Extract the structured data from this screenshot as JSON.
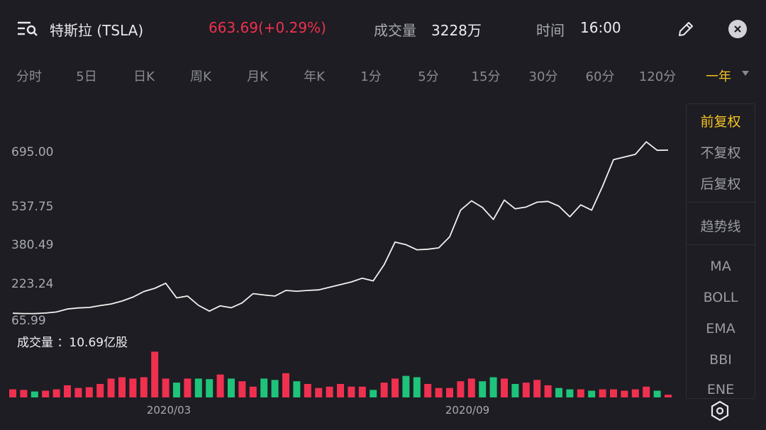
{
  "header": {
    "title": "特斯拉 (TSLA)",
    "price": "663.69(+0.29%)",
    "volume_label": "成交量",
    "volume_value": "3228万",
    "time_label": "时间",
    "time_value": "16:00"
  },
  "tabs": [
    "分时",
    "5日",
    "日K",
    "周K",
    "月K",
    "年K",
    "1分",
    "5分",
    "15分",
    "30分",
    "60分",
    "120分",
    "一年"
  ],
  "active_tab": "一年",
  "side_panel": {
    "adjust_options": [
      "前复权",
      "不复权",
      "后复权"
    ],
    "active_adjust": "前复权",
    "trend_line": "趋势线",
    "indicators": [
      "MA",
      "BOLL",
      "EMA",
      "BBI",
      "ENE"
    ]
  },
  "volume_text": "成交量 ：10.69亿股",
  "colors": {
    "up": "#f0304f",
    "down": "#1fc37a",
    "accent": "#f6c224",
    "line": "#f2f2f2"
  },
  "chart_data": {
    "type": "line",
    "y_tick_labels": [
      "695.00",
      "537.75",
      "380.49",
      "223.24",
      "65.99"
    ],
    "ylim": [
      65.99,
      695.0
    ],
    "x_tick_labels": [
      "2020/03",
      "2020/09"
    ],
    "series": [
      {
        "values": [
          92,
          91,
          91,
          93,
          97,
          108,
          112,
          114,
          121,
          127,
          138,
          153,
          174,
          186,
          205,
          150,
          157,
          122,
          100,
          120,
          113,
          131,
          166,
          161,
          157,
          178,
          175,
          178,
          180,
          190,
          200,
          210,
          224,
          214,
          275,
          360,
          350,
          331,
          333,
          338,
          380,
          480,
          515,
          490,
          445,
          518,
          485,
          492,
          510,
          513,
          495,
          455,
          500,
          480,
          570,
          670,
          680,
          690,
          737,
          705,
          706
        ]
      }
    ],
    "volume": {
      "values": [
        0.3,
        0.28,
        0.22,
        0.25,
        0.3,
        0.45,
        0.35,
        0.38,
        0.5,
        0.7,
        0.75,
        0.7,
        0.75,
        1.7,
        0.7,
        0.55,
        0.7,
        0.7,
        0.68,
        0.85,
        0.7,
        0.6,
        0.4,
        0.7,
        0.65,
        0.9,
        0.6,
        0.5,
        0.35,
        0.4,
        0.5,
        0.4,
        0.4,
        0.28,
        0.55,
        0.7,
        0.8,
        0.75,
        0.5,
        0.35,
        0.35,
        0.6,
        0.7,
        0.6,
        0.75,
        0.7,
        0.5,
        0.55,
        0.65,
        0.45,
        0.35,
        0.3,
        0.3,
        0.25,
        0.3,
        0.3,
        0.25,
        0.3,
        0.4,
        0.25,
        0.1
      ],
      "up": [
        1,
        1,
        0,
        1,
        1,
        1,
        1,
        1,
        1,
        1,
        1,
        1,
        1,
        1,
        1,
        0,
        1,
        0,
        0,
        1,
        0,
        1,
        1,
        0,
        0,
        1,
        0,
        1,
        1,
        1,
        1,
        1,
        1,
        0,
        1,
        1,
        0,
        0,
        1,
        1,
        1,
        1,
        1,
        0,
        0,
        1,
        0,
        1,
        1,
        1,
        0,
        0,
        1,
        0,
        1,
        1,
        1,
        1,
        1,
        0,
        1
      ]
    }
  }
}
